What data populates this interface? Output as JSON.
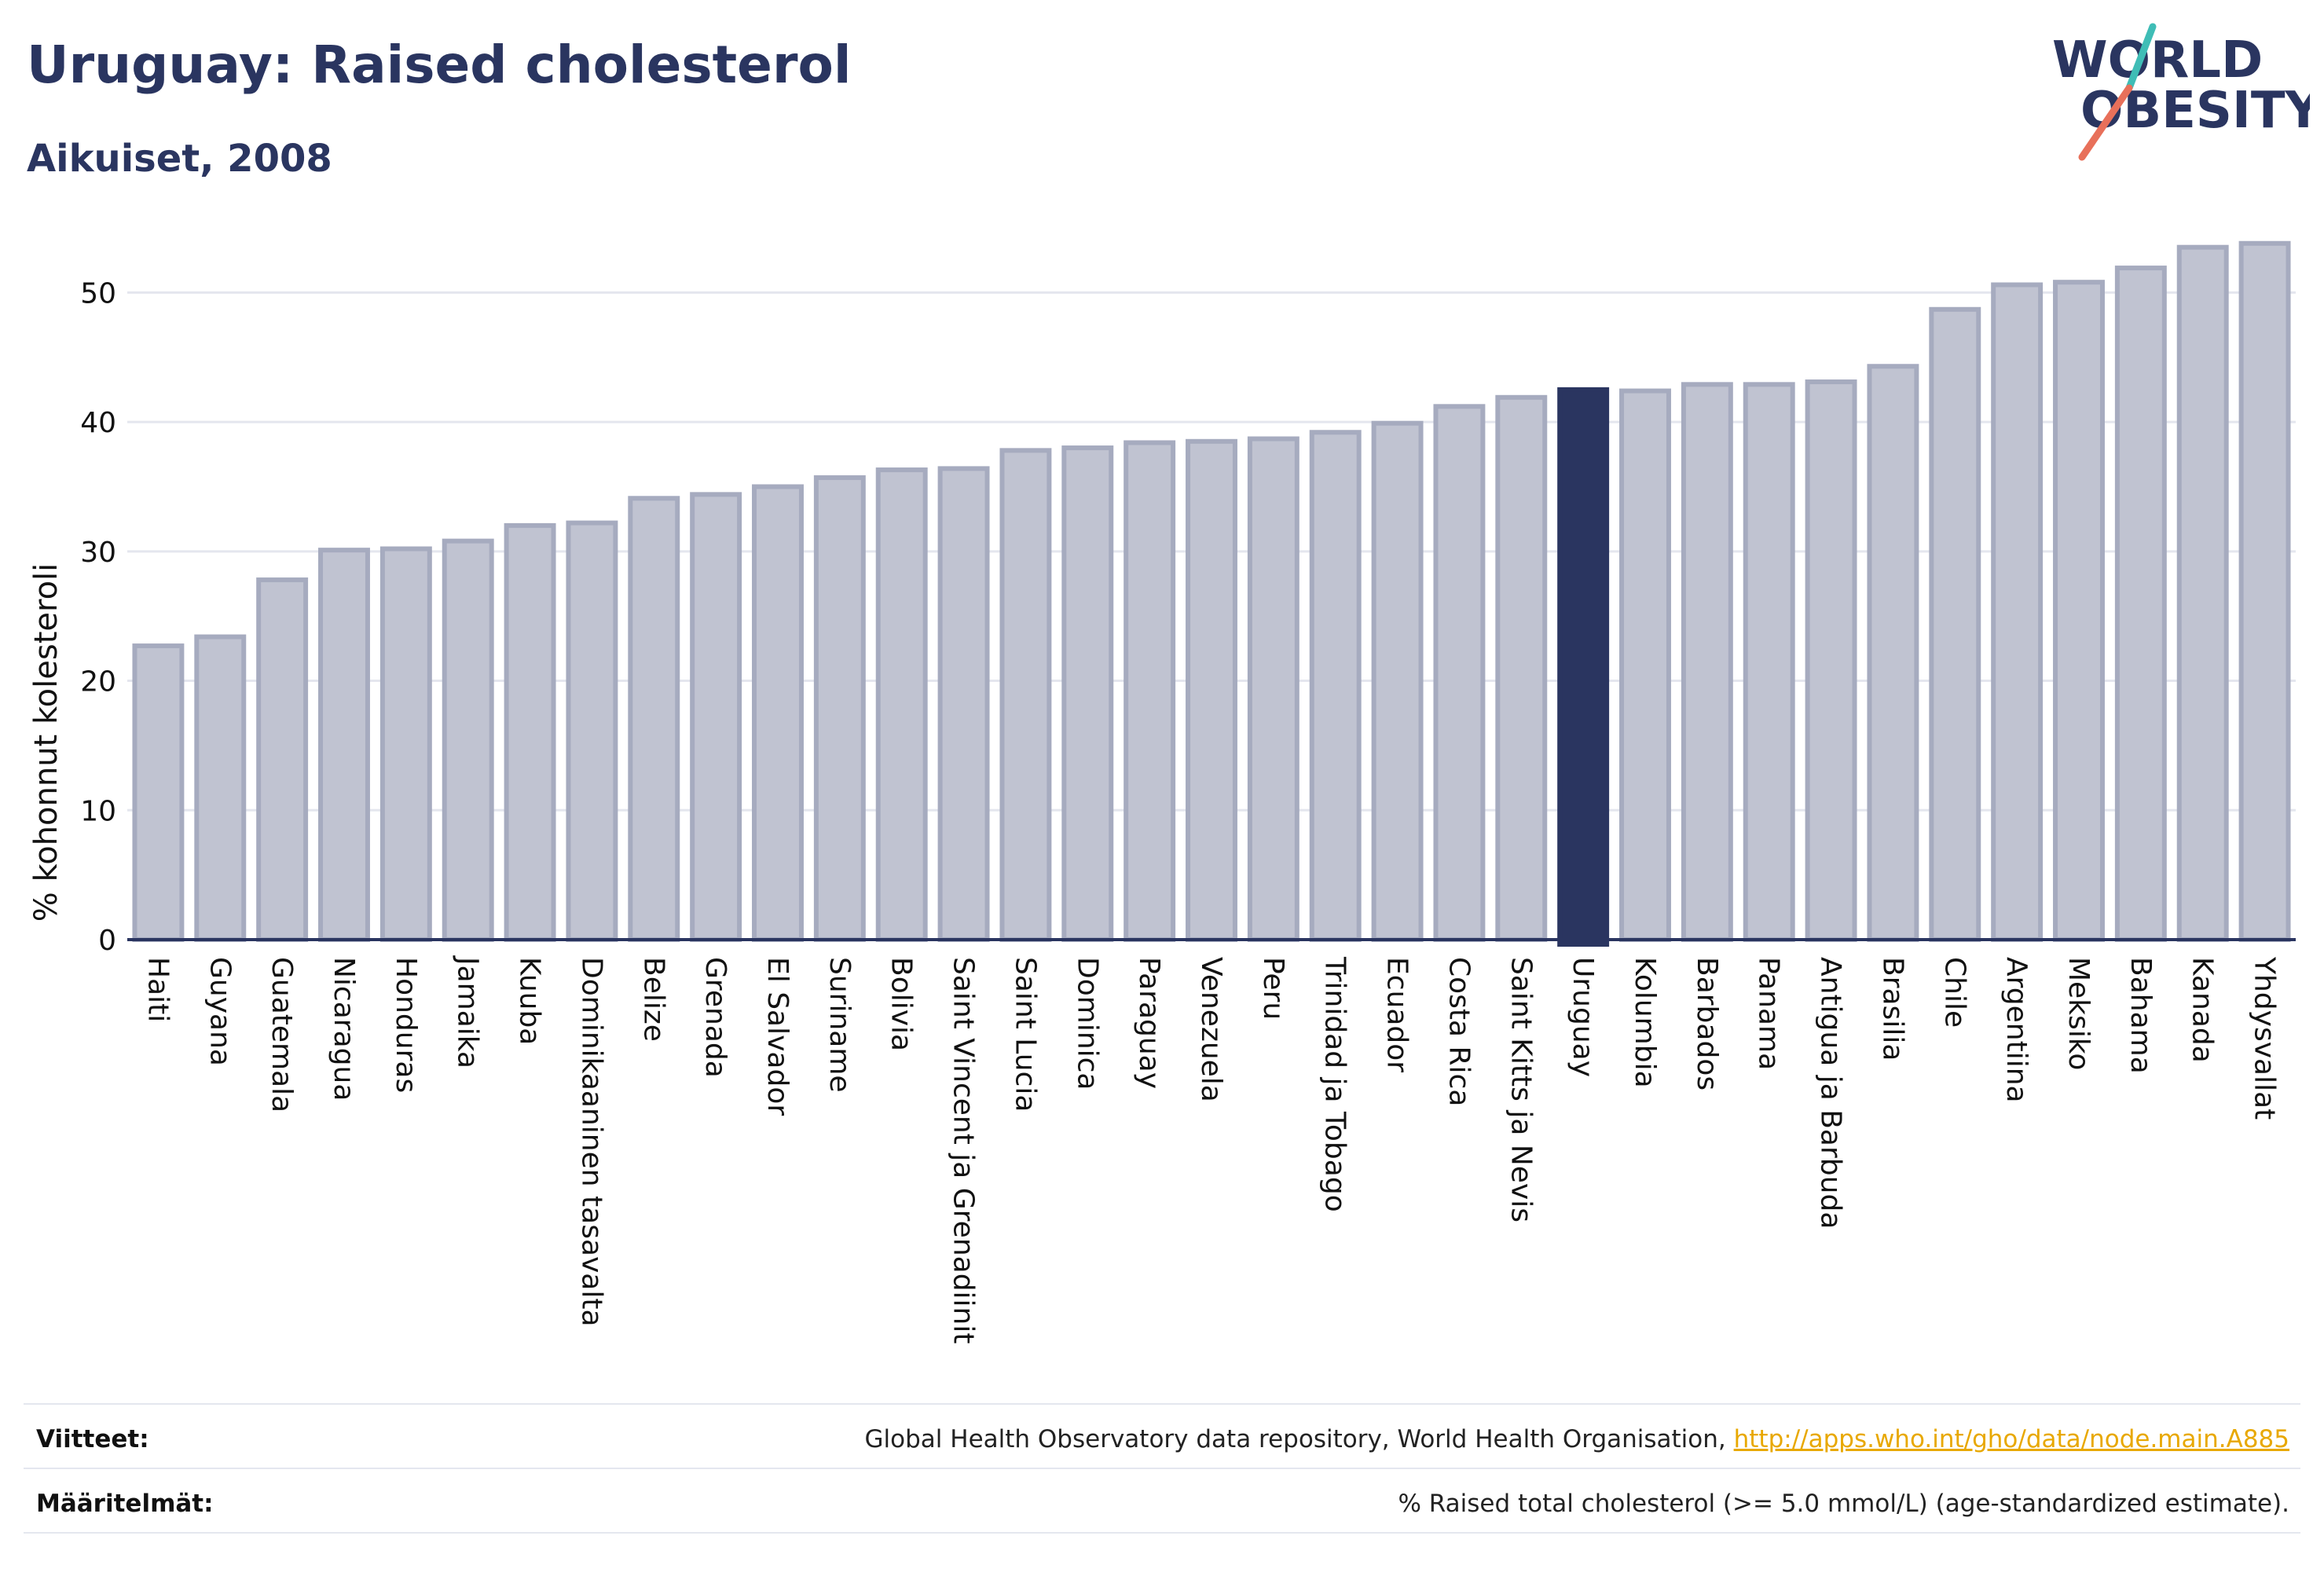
{
  "header": {
    "title": "Uruguay: Raised cholesterol",
    "subtitle": "Aikuiset, 2008"
  },
  "logo": {
    "line1": "WORLD",
    "line2": "OBESITY",
    "text_color": "#2a3560",
    "slash_colors": [
      "#e8705a",
      "#3fbdb6"
    ]
  },
  "chart_data": {
    "type": "bar",
    "title": "Uruguay: Raised cholesterol",
    "subtitle": "Aikuiset, 2008",
    "ylabel": "% kohonnut kolesteroli",
    "xlabel": "",
    "ylim": [
      0,
      55
    ],
    "yticks": [
      0,
      10,
      20,
      30,
      40,
      50
    ],
    "grid": true,
    "highlight": "Uruguay",
    "colors": {
      "bar_fill": "#c0c3d1",
      "bar_stroke": "#a6abbf",
      "highlight_fill": "#2a3560",
      "grid": "#e4e6ee",
      "axis": "#2a3560"
    },
    "categories": [
      "Haiti",
      "Guyana",
      "Guatemala",
      "Nicaragua",
      "Honduras",
      "Jamaika",
      "Kuuba",
      "Dominikaaninen tasavalta",
      "Belize",
      "Grenada",
      "El Salvador",
      "Suriname",
      "Bolivia",
      "Saint Vincent ja Grenadiinit",
      "Saint Lucia",
      "Dominica",
      "Paraguay",
      "Venezuela",
      "Peru",
      "Trinidad ja Tobago",
      "Ecuador",
      "Costa Rica",
      "Saint Kitts ja Nevis",
      "Uruguay",
      "Kolumbia",
      "Barbados",
      "Panama",
      "Antigua ja Barbuda",
      "Brasilia",
      "Chile",
      "Argentiina",
      "Meksiko",
      "Bahama",
      "Kanada",
      "Yhdysvallat"
    ],
    "values": [
      22.7,
      23.4,
      27.8,
      30.1,
      30.2,
      30.8,
      32.0,
      32.2,
      34.1,
      34.4,
      35.0,
      35.7,
      36.3,
      36.4,
      37.8,
      38.0,
      38.4,
      38.5,
      38.7,
      39.2,
      39.9,
      41.2,
      41.9,
      42.5,
      42.4,
      42.9,
      42.9,
      43.1,
      44.3,
      48.7,
      50.6,
      50.8,
      51.9,
      53.5,
      53.8
    ]
  },
  "footer": {
    "sources_label": "Viitteet:",
    "sources_text": "Global Health Observatory data repository, World Health Organisation, ",
    "sources_link": "http://apps.who.int/gho/data/node.main.A885",
    "definitions_label": "Määritelmät:",
    "definitions_text": "% Raised total cholesterol (>= 5.0 mmol/L) (age-standardized estimate)."
  }
}
